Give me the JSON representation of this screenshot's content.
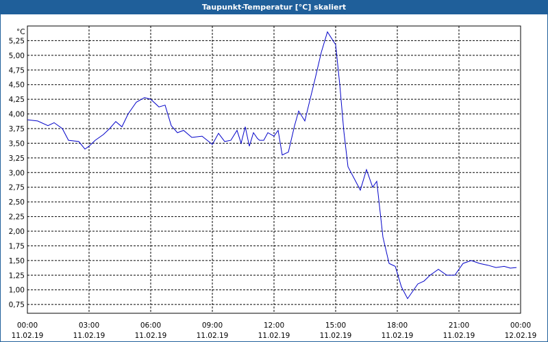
{
  "window": {
    "title": "Taupunkt-Temperatur [°C] skaliert"
  },
  "colors": {
    "title_bar": "#1f5f9a",
    "series": "#0000c8",
    "grid": "#000000",
    "background": "#ffffff"
  },
  "chart_data": {
    "type": "line",
    "title": "Taupunkt-Temperatur [°C] skaliert",
    "unit_label": "°C",
    "grid": true,
    "ylim": [
      0.6,
      5.5
    ],
    "xlim": [
      0,
      24
    ],
    "y_ticks": [
      "0,75",
      "1,00",
      "1,25",
      "1,50",
      "1,75",
      "2,00",
      "2,25",
      "2,50",
      "2,75",
      "3,00",
      "3,25",
      "3,50",
      "3,75",
      "4,00",
      "4,25",
      "4,50",
      "4,75",
      "5,00",
      "5,25"
    ],
    "y_tick_values": [
      0.75,
      1.0,
      1.25,
      1.5,
      1.75,
      2.0,
      2.25,
      2.5,
      2.75,
      3.0,
      3.25,
      3.5,
      3.75,
      4.0,
      4.25,
      4.5,
      4.75,
      5.0,
      5.25
    ],
    "x_ticks": [
      {
        "time": "00:00",
        "date": "11.02.19"
      },
      {
        "time": "03:00",
        "date": "11.02.19"
      },
      {
        "time": "06:00",
        "date": "11.02.19"
      },
      {
        "time": "09:00",
        "date": "11.02.19"
      },
      {
        "time": "12:00",
        "date": "11.02.19"
      },
      {
        "time": "15:00",
        "date": "11.02.19"
      },
      {
        "time": "18:00",
        "date": "11.02.19"
      },
      {
        "time": "21:00",
        "date": "11.02.19"
      },
      {
        "time": "00:00",
        "date": "12.02.19"
      }
    ],
    "x_tick_values": [
      0,
      3,
      6,
      9,
      12,
      15,
      18,
      21,
      24
    ],
    "x": [
      0,
      0.5,
      1,
      1.3,
      1.7,
      2,
      2.5,
      2.8,
      3,
      3.3,
      3.7,
      4,
      4.3,
      4.6,
      4.9,
      5.3,
      5.7,
      6,
      6.4,
      6.7,
      7,
      7.3,
      7.6,
      8,
      8.5,
      9,
      9.3,
      9.6,
      9.9,
      10.2,
      10.4,
      10.6,
      10.8,
      11,
      11.2,
      11.3,
      11.5,
      11.7,
      12,
      12.2,
      12.4,
      12.7,
      13,
      13.2,
      13.5,
      14,
      14.3,
      14.6,
      15,
      15.2,
      15.4,
      15.6,
      15.9,
      16.2,
      16.5,
      16.8,
      17,
      17.3,
      17.6,
      17.9,
      18.2,
      18.5,
      18.7,
      19,
      19.3,
      19.6,
      20,
      20.4,
      20.8,
      21.2,
      21.6,
      22,
      22.4,
      22.8,
      23.2,
      23.5,
      23.8
    ],
    "series": [
      {
        "values": [
          3.9,
          3.88,
          3.8,
          3.85,
          3.75,
          3.55,
          3.53,
          3.4,
          3.45,
          3.55,
          3.65,
          3.75,
          3.87,
          3.78,
          4.0,
          4.2,
          4.28,
          4.25,
          4.12,
          4.15,
          3.8,
          3.68,
          3.72,
          3.6,
          3.62,
          3.48,
          3.67,
          3.53,
          3.55,
          3.72,
          3.5,
          3.78,
          3.45,
          3.68,
          3.58,
          3.55,
          3.55,
          3.68,
          3.62,
          3.72,
          3.3,
          3.35,
          3.8,
          4.05,
          3.88,
          4.6,
          5.05,
          5.4,
          5.18,
          4.5,
          3.7,
          3.1,
          2.9,
          2.7,
          3.05,
          2.75,
          2.85,
          1.9,
          1.45,
          1.4,
          1.05,
          0.85,
          0.95,
          1.1,
          1.15,
          1.25,
          1.35,
          1.25,
          1.25,
          1.45,
          1.5,
          1.45,
          1.42,
          1.38,
          1.4,
          1.37,
          1.38
        ]
      }
    ]
  }
}
